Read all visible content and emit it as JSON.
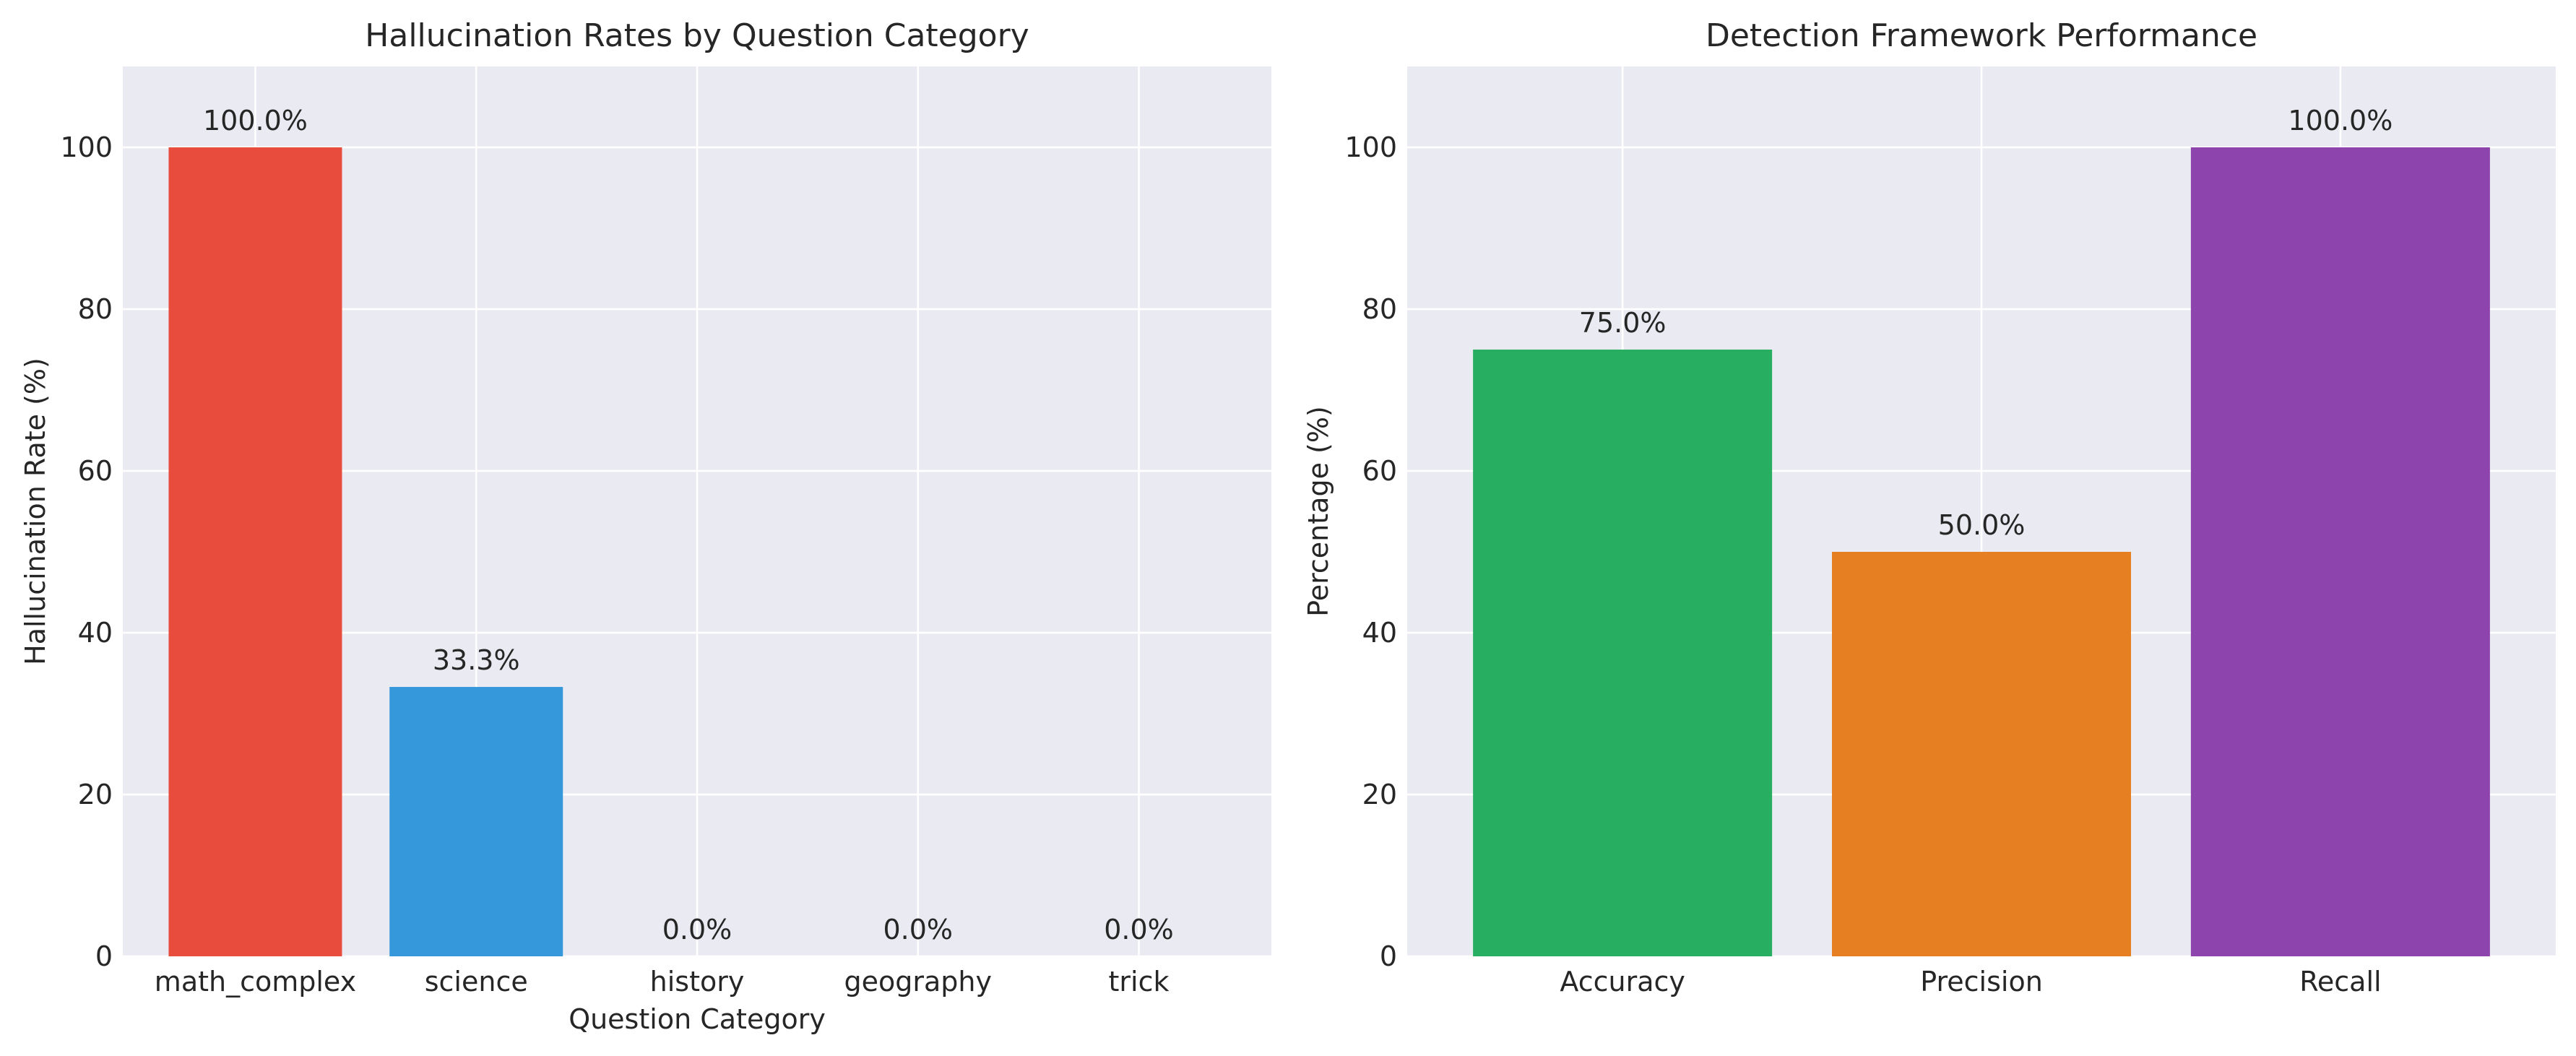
{
  "chart_data": [
    {
      "type": "bar",
      "title": "Hallucination Rates by Question Category",
      "xlabel": "Question Category",
      "ylabel": "Hallucination Rate (%)",
      "categories": [
        "math_complex",
        "science",
        "history",
        "geography",
        "trick"
      ],
      "values": [
        100.0,
        33.3,
        0.0,
        0.0,
        0.0
      ],
      "value_labels": [
        "100.0%",
        "33.3%",
        "0.0%",
        "0.0%",
        "0.0%"
      ],
      "colors": [
        "#e74c3c",
        "#3498db",
        "#2ecc71",
        "#f39c12",
        "#9b59b6"
      ],
      "ylim": [
        0,
        110
      ],
      "yticks": [
        0,
        20,
        40,
        60,
        80,
        100
      ],
      "grid": true,
      "legend": "none"
    },
    {
      "type": "bar",
      "title": "Detection Framework Performance",
      "xlabel": "",
      "ylabel": "Percentage (%)",
      "categories": [
        "Accuracy",
        "Precision",
        "Recall"
      ],
      "values": [
        75.0,
        50.0,
        100.0
      ],
      "value_labels": [
        "75.0%",
        "50.0%",
        "100.0%"
      ],
      "colors": [
        "#27ae60",
        "#e67e22",
        "#8e44ad"
      ],
      "ylim": [
        0,
        110
      ],
      "yticks": [
        0,
        20,
        40,
        60,
        80,
        100
      ],
      "grid": true,
      "legend": "none"
    }
  ]
}
